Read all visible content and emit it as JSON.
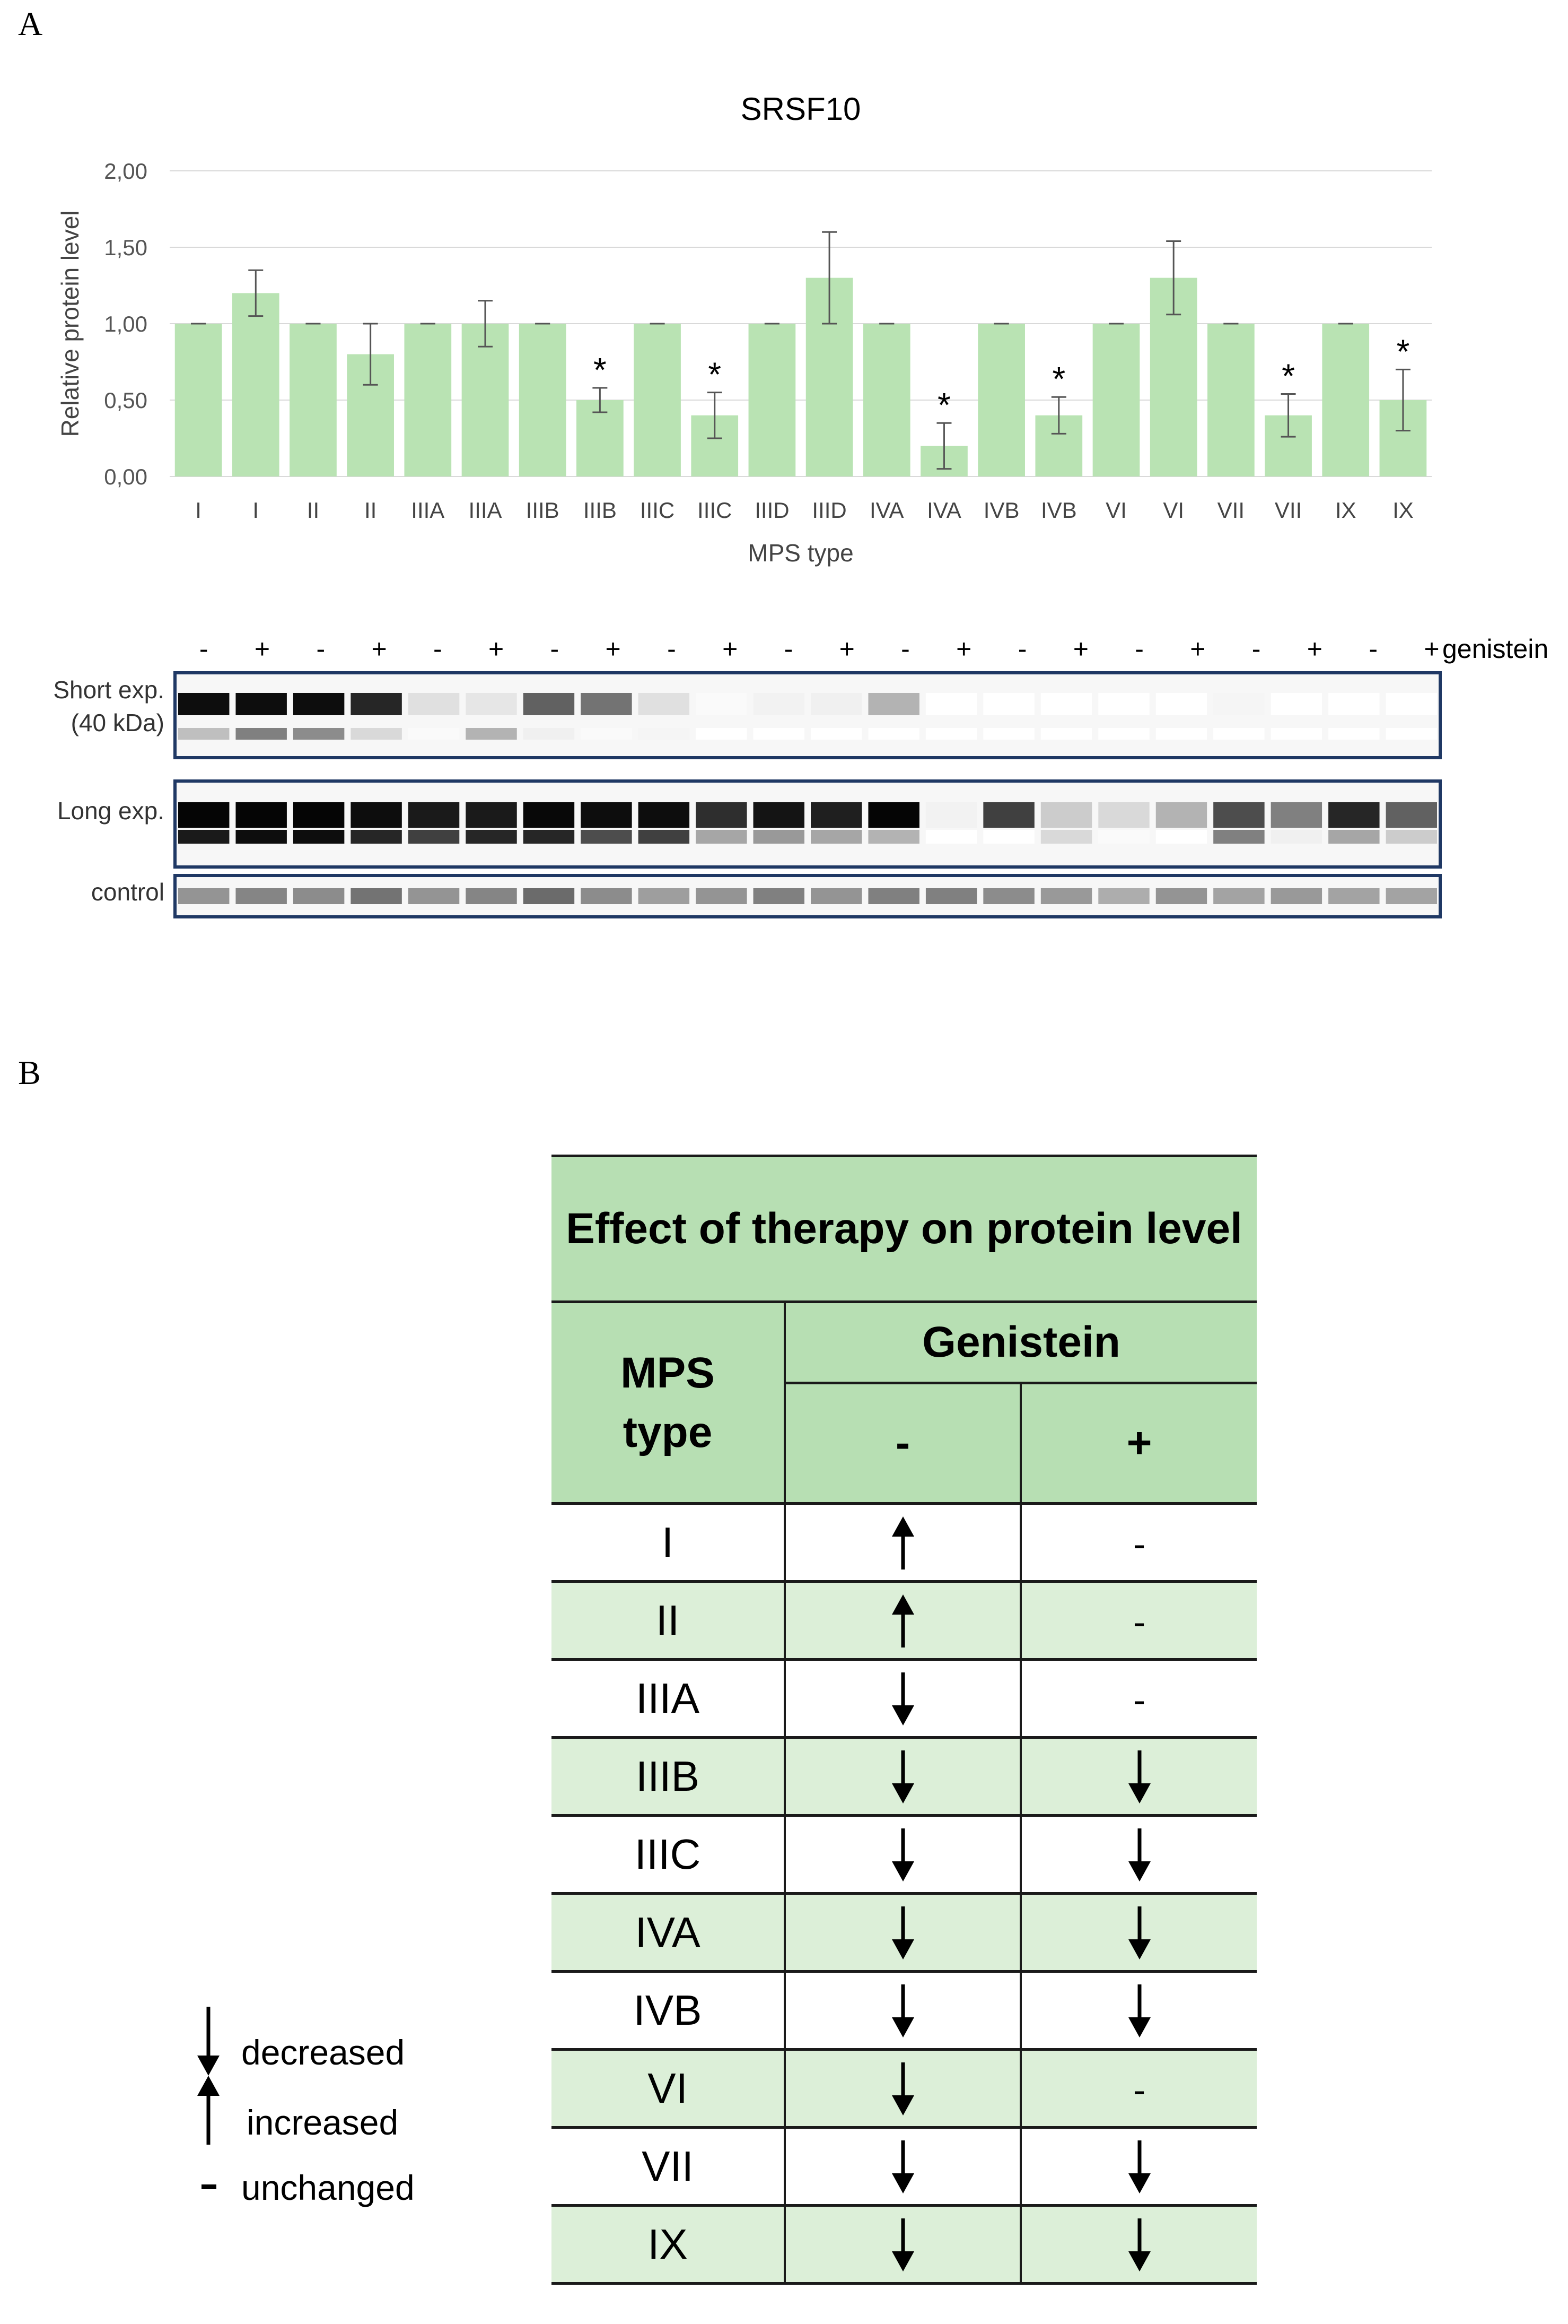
{
  "panels": {
    "a": "A",
    "b": "B"
  },
  "chart_data": {
    "type": "bar",
    "title": "SRSF10",
    "xlabel": "MPS type",
    "ylabel": "Relative protein level",
    "ylim": [
      0,
      2
    ],
    "yticks": [
      "0,00",
      "0,50",
      "1,00",
      "1,50",
      "2,00"
    ],
    "grid": true,
    "color": "#b9e3b3",
    "categories": [
      "I",
      "I",
      "II",
      "II",
      "IIIA",
      "IIIA",
      "IIIB",
      "IIIB",
      "IIIC",
      "IIIC",
      "IIID",
      "IIID",
      "IVA",
      "IVA",
      "IVB",
      "IVB",
      "VI",
      "VI",
      "VII",
      "VII",
      "IX",
      "IX"
    ],
    "values": [
      1.0,
      1.2,
      1.0,
      0.8,
      1.0,
      1.0,
      1.0,
      0.5,
      1.0,
      0.4,
      1.0,
      1.3,
      1.0,
      0.2,
      1.0,
      0.4,
      1.0,
      1.3,
      1.0,
      0.4,
      1.0,
      0.5
    ],
    "errors": [
      0.0,
      0.15,
      0.0,
      0.2,
      0.0,
      0.15,
      0.0,
      0.08,
      0.0,
      0.15,
      0.0,
      0.3,
      0.0,
      0.15,
      0.0,
      0.12,
      0.0,
      0.24,
      0.0,
      0.14,
      0.0,
      0.2
    ],
    "significance": [
      "",
      "",
      "",
      "",
      "",
      "",
      "",
      "*",
      "",
      "*",
      "",
      "",
      "",
      "*",
      "",
      "*",
      "",
      "",
      "",
      "*",
      "",
      "*"
    ]
  },
  "blot": {
    "treatment_label": "genistein",
    "treatments": [
      "-",
      "+",
      "-",
      "+",
      "-",
      "+",
      "-",
      "+",
      "-",
      "+",
      "-",
      "+",
      "-",
      "+",
      "-",
      "+",
      "-",
      "+",
      "-",
      "+",
      "-",
      "+"
    ],
    "panels": [
      {
        "label_lines": [
          "Short exp.",
          "(40 kDa)"
        ]
      },
      {
        "label_lines": [
          "Long exp."
        ]
      },
      {
        "label_lines": [
          "control"
        ]
      }
    ]
  },
  "table": {
    "title": "Effect of therapy on protein level",
    "col_header": "MPS type",
    "group_header": "Genistein",
    "sub_headers": [
      "-",
      "+"
    ],
    "rows": [
      {
        "type": "I",
        "minus": "up",
        "plus": "unchanged"
      },
      {
        "type": "II",
        "minus": "up",
        "plus": "unchanged"
      },
      {
        "type": "IIIA",
        "minus": "down",
        "plus": "unchanged"
      },
      {
        "type": "IIIB",
        "minus": "down",
        "plus": "down"
      },
      {
        "type": "IIIC",
        "minus": "down",
        "plus": "down"
      },
      {
        "type": "IVA",
        "minus": "down",
        "plus": "down"
      },
      {
        "type": "IVB",
        "minus": "down",
        "plus": "down"
      },
      {
        "type": "VI",
        "minus": "down",
        "plus": "unchanged"
      },
      {
        "type": "VII",
        "minus": "down",
        "plus": "down"
      },
      {
        "type": "IX",
        "minus": "down",
        "plus": "down"
      }
    ],
    "dash_glyph": "-"
  },
  "legend": [
    {
      "icon": "down-arrow-icon",
      "label": "decreased"
    },
    {
      "icon": "up-arrow-icon",
      "label": "increased"
    },
    {
      "icon": "dash-icon",
      "label": "unchanged"
    }
  ]
}
